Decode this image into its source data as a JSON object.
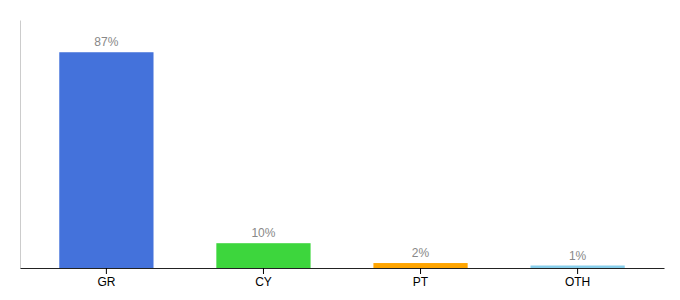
{
  "chart_data": {
    "type": "bar",
    "categories": [
      "GR",
      "CY",
      "PT",
      "OTH"
    ],
    "values": [
      87,
      10,
      2,
      1
    ],
    "value_labels": [
      "87%",
      "10%",
      "2%",
      "1%"
    ],
    "colors": [
      "#4472DB",
      "#3DD63D",
      "#FFA500",
      "#87CEEB"
    ],
    "ylim": [
      0,
      100
    ],
    "data_labels": true,
    "grid": false,
    "tick_labels": "x"
  }
}
